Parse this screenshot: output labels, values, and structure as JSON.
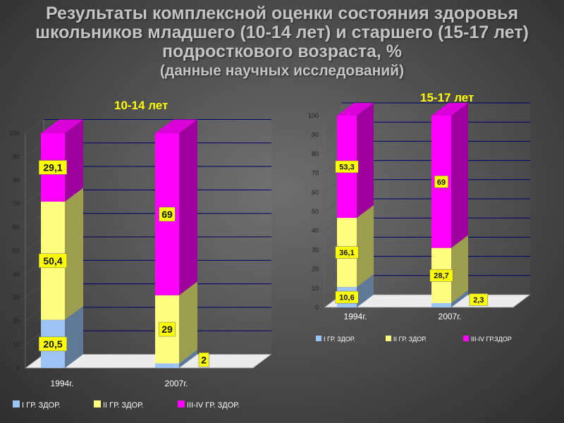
{
  "header": {
    "title": "Результаты комплексной оценки состояния здоровья школьников младшего (10-14 лет) и старшего (15-17 лет) подросткового возраста, %",
    "subtitle": "(данные научных исследований)"
  },
  "colors": {
    "group1": "#9dc3f5",
    "group2": "#ffff80",
    "group3": "#ff00ff",
    "label_bg": "#ffff00"
  },
  "chart_data": [
    {
      "type": "bar",
      "stacked": true,
      "title": "10-14 лет",
      "categories": [
        "1994г.",
        "2007г."
      ],
      "series": [
        {
          "name": "I ГР. ЗДОР.",
          "values": [
            20.5,
            2
          ],
          "labels": [
            "20,5",
            "2"
          ]
        },
        {
          "name": "II ГР. ЗДОР.",
          "values": [
            50.4,
            29
          ],
          "labels": [
            "50,4",
            "29"
          ]
        },
        {
          "name": "III-IV ГР. ЗДОР.",
          "values": [
            29.1,
            69
          ],
          "labels": [
            "29,1",
            "69"
          ]
        }
      ],
      "ylim": [
        0,
        100
      ],
      "yticks": [
        "0",
        "10",
        "20",
        "30",
        "40",
        "50",
        "60",
        "70",
        "80",
        "90",
        "100"
      ],
      "legend_position": "bottom"
    },
    {
      "type": "bar",
      "stacked": true,
      "title": "15-17 лет",
      "categories": [
        "1994г.",
        "2007г."
      ],
      "series": [
        {
          "name": "I ГР. ЗДОР.",
          "values": [
            10.6,
            2.3
          ],
          "labels": [
            "10,6",
            "2,3"
          ]
        },
        {
          "name": "II ГР. ЗДОР.",
          "values": [
            36.1,
            28.7
          ],
          "labels": [
            "36,1",
            "28,7"
          ]
        },
        {
          "name": "III-IV ГР.ЗДОР",
          "values": [
            53.3,
            69
          ],
          "labels": [
            "53,3",
            "69"
          ]
        }
      ],
      "ylim": [
        0,
        100
      ],
      "yticks": [
        "0",
        "10",
        "20",
        "30",
        "40",
        "50",
        "60",
        "70",
        "80",
        "90",
        "100"
      ],
      "legend_position": "bottom"
    }
  ]
}
